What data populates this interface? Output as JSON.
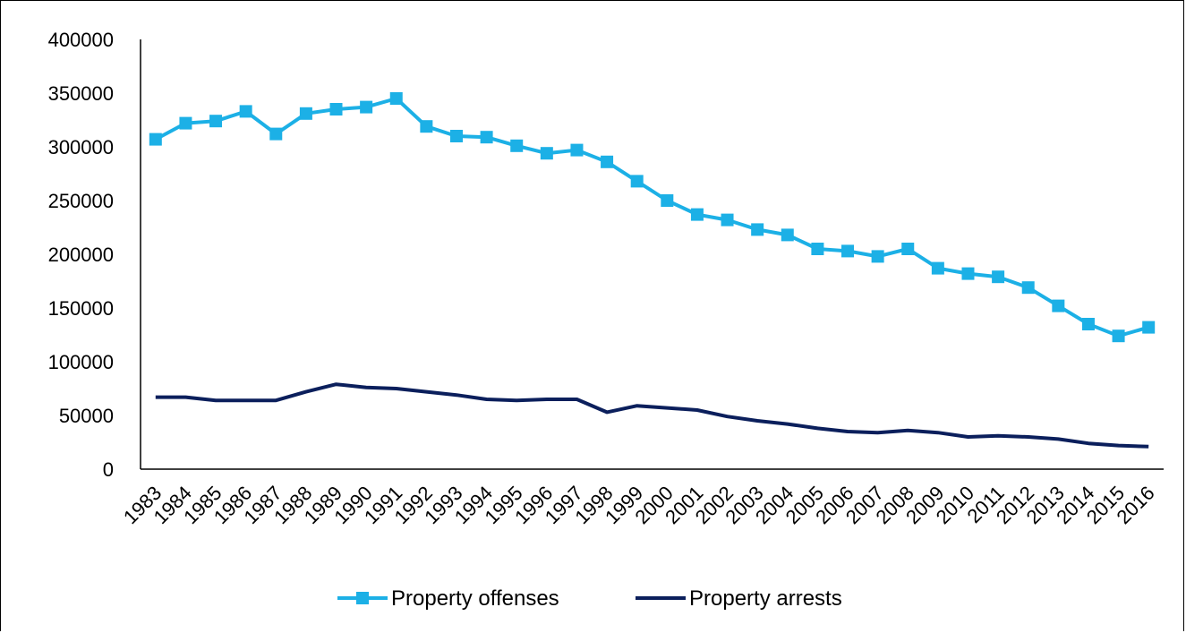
{
  "chart_data": {
    "type": "line",
    "x": [
      "1983",
      "1984",
      "1985",
      "1986",
      "1987",
      "1988",
      "1989",
      "1990",
      "1991",
      "1992",
      "1993",
      "1994",
      "1995",
      "1996",
      "1997",
      "1998",
      "1999",
      "2000",
      "2001",
      "2002",
      "2003",
      "2004",
      "2005",
      "2006",
      "2007",
      "2008",
      "2009",
      "2010",
      "2011",
      "2012",
      "2013",
      "2014",
      "2015",
      "2016"
    ],
    "series": [
      {
        "name": "Property offenses",
        "color": "#1CB0E6",
        "marker": "square",
        "values": [
          307000,
          322000,
          324000,
          333000,
          312000,
          331000,
          335000,
          337000,
          345000,
          319000,
          310000,
          309000,
          301000,
          294000,
          297000,
          286000,
          268000,
          250000,
          237000,
          232000,
          223000,
          218000,
          205000,
          203000,
          198000,
          205000,
          187000,
          182000,
          179000,
          169000,
          152000,
          135000,
          124000,
          132000
        ]
      },
      {
        "name": "Property arrests",
        "color": "#0B1F5C",
        "marker": "none",
        "values": [
          67000,
          67000,
          64000,
          64000,
          64000,
          72000,
          79000,
          76000,
          75000,
          72000,
          69000,
          65000,
          64000,
          65000,
          65000,
          53000,
          59000,
          57000,
          55000,
          49000,
          45000,
          42000,
          38000,
          35000,
          34000,
          36000,
          34000,
          30000,
          31000,
          30000,
          28000,
          24000,
          22000,
          21000
        ]
      }
    ],
    "yticks": [
      "0",
      "50000",
      "100000",
      "150000",
      "200000",
      "250000",
      "300000",
      "350000",
      "400000"
    ],
    "ylim": [
      0,
      400000
    ],
    "xlabel": "",
    "ylabel": "",
    "title": "",
    "grid": false,
    "legend": "bottom"
  }
}
